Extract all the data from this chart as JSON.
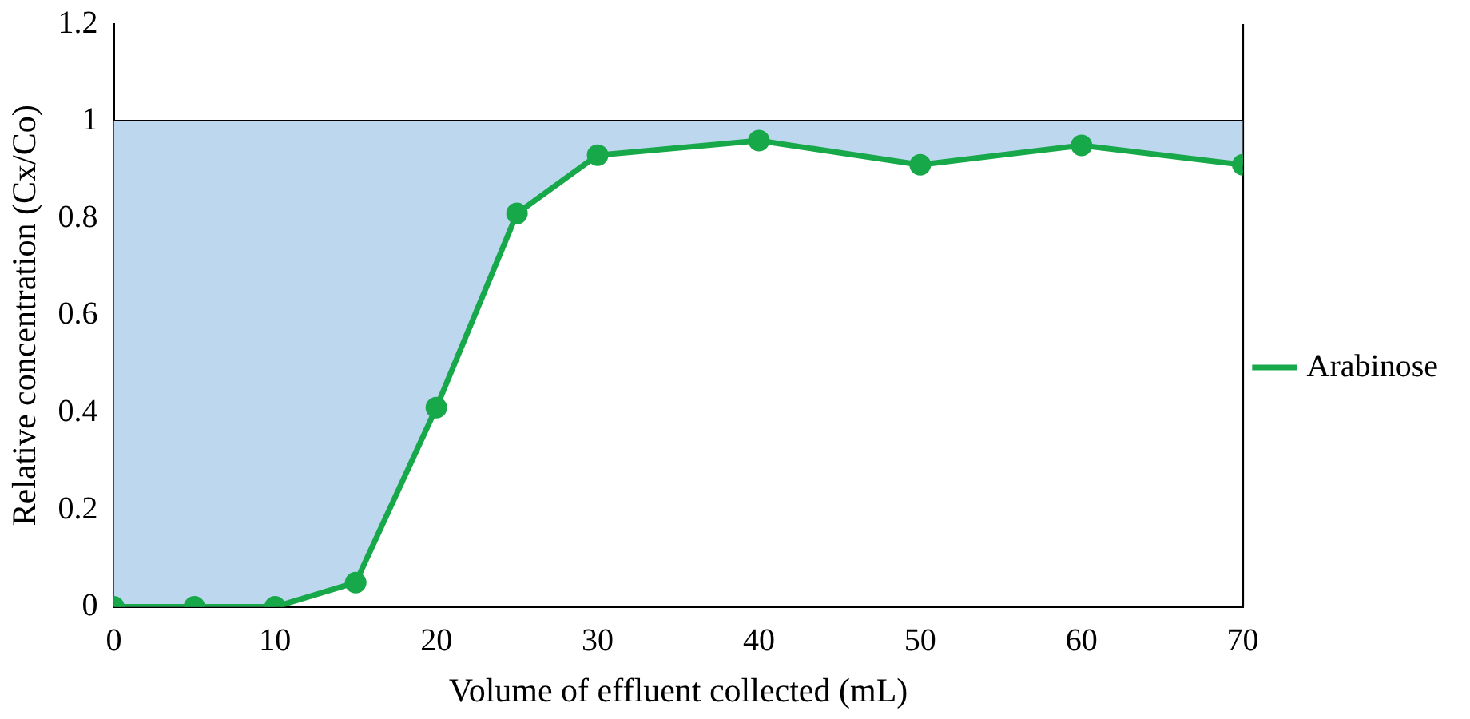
{
  "chart_data": {
    "type": "line",
    "xlabel": "Volume of effluent collected (mL)",
    "ylabel": "Relative concentration (Cx/Co)",
    "x": [
      0,
      5,
      10,
      15,
      20,
      25,
      30,
      40,
      50,
      60,
      70
    ],
    "series": [
      {
        "name": "Arabinose",
        "color": "#17a84a",
        "values": [
          0,
          0,
          0,
          0.05,
          0.41,
          0.81,
          0.93,
          0.96,
          0.91,
          0.95,
          0.91
        ]
      },
      {
        "type": "area",
        "color": "#bdd7ee",
        "marker": "none",
        "values": [
          1,
          1,
          1,
          1,
          1,
          1,
          1,
          1,
          1,
          1,
          1
        ]
      }
    ],
    "xlim": [
      0,
      70
    ],
    "xticks": [
      0,
      10,
      20,
      30,
      40,
      50,
      60,
      70
    ],
    "ylim": [
      0,
      1.2
    ],
    "yticks": [
      0,
      0.2,
      0.4,
      0.6,
      0.8,
      1,
      1.2
    ],
    "ref_lines": [
      {
        "axis": "y",
        "value": 1,
        "color": "#000000"
      }
    ],
    "grid": false,
    "legend": "right",
    "marker": "circle",
    "line_style": "solid"
  }
}
